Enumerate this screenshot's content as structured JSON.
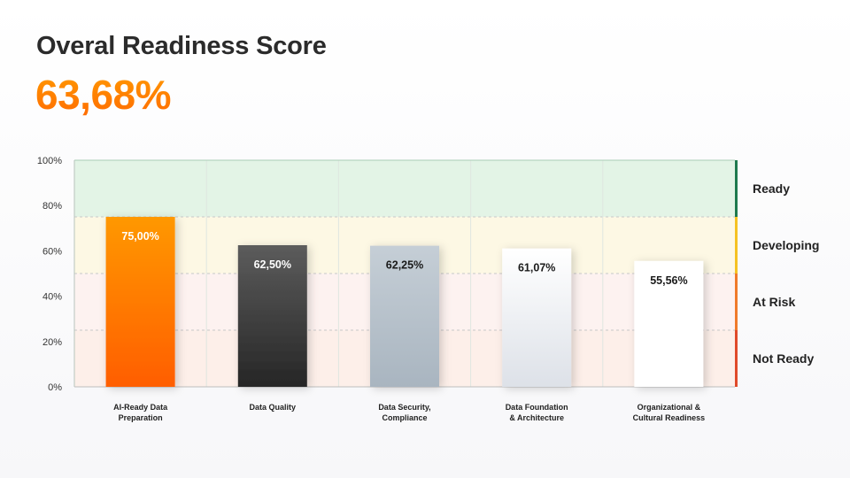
{
  "header": {
    "title": "Overal Readiness Score",
    "score": "63,68%"
  },
  "chart_data": {
    "type": "bar",
    "categories": [
      [
        "AI-Ready Data",
        "Preparation"
      ],
      [
        "Data Quality"
      ],
      [
        "Data Security,",
        "Compliance"
      ],
      [
        "Data Foundation",
        "& Architecture"
      ],
      [
        "Organizational &",
        "Cultural Readiness"
      ]
    ],
    "values": [
      75.0,
      62.5,
      62.25,
      61.07,
      55.56
    ],
    "value_labels": [
      "75,00%",
      "62,50%",
      "62,25%",
      "61,07%",
      "55,56%"
    ],
    "ylim": [
      0,
      100
    ],
    "y_ticks": [
      0,
      20,
      40,
      60,
      80,
      100
    ],
    "y_tick_labels": [
      "0%",
      "20%",
      "40%",
      "60%",
      "80%",
      "100%"
    ],
    "grid": true,
    "zones": [
      {
        "label": "Ready",
        "from": 75,
        "to": 100,
        "fill": "#e3f4e6",
        "marker": "#1e7a4e"
      },
      {
        "label": "Developing",
        "from": 50,
        "to": 75,
        "fill": "#fdf8e4",
        "marker": "#f5c222"
      },
      {
        "label": "At Risk",
        "from": 25,
        "to": 50,
        "fill": "#fdf2f0",
        "marker": "#f07a2a"
      },
      {
        "label": "Not Ready",
        "from": 0,
        "to": 25,
        "fill": "#fdefe9",
        "marker": "#e04a2a"
      }
    ],
    "bar_styles": [
      {
        "top": "#ff9800",
        "bottom": "#ff5e00",
        "label_color": "#ffffff"
      },
      {
        "top": "#5c5c5c",
        "bottom": "#262626",
        "label_color": "#ffffff"
      },
      {
        "top": "#c5ced6",
        "bottom": "#a9b5c0",
        "label_color": "#1a1a1a"
      },
      {
        "top": "#ffffff",
        "bottom": "#dde1e8",
        "label_color": "#1a1a1a"
      },
      {
        "top": "#ffffff",
        "bottom": "#ffffff",
        "label_color": "#1a1a1a"
      }
    ]
  }
}
